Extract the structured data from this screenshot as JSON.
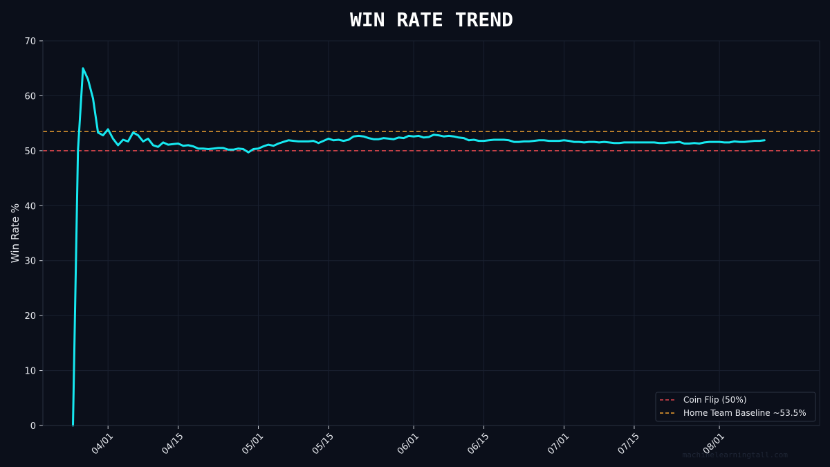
{
  "colors": {
    "background": "#0b0f1a",
    "plot_background": "#0b0f1a",
    "series": "#16e8f0",
    "coin_flip": "#e0474c",
    "home_baseline": "#f0a030",
    "grid": "#1a2030",
    "text": "#e7e9ee"
  },
  "watermark": "machinelearningtall.com",
  "chart_data": {
    "type": "line",
    "title": "WIN RATE TREND",
    "xlabel": "",
    "ylabel": "Win Rate %",
    "ylim": [
      0,
      70
    ],
    "xlim": [
      "2025-03-19",
      "2025-08-21"
    ],
    "yticks": [
      0,
      10,
      20,
      30,
      40,
      50,
      60,
      70
    ],
    "xticks": [
      "04/01",
      "04/15",
      "05/01",
      "05/15",
      "06/01",
      "06/15",
      "07/01",
      "07/15",
      "08/01"
    ],
    "xtick_dates": [
      "2025-04-01",
      "2025-04-15",
      "2025-05-01",
      "2025-05-15",
      "2025-06-01",
      "2025-06-15",
      "2025-07-01",
      "2025-07-15",
      "2025-08-01"
    ],
    "grid": true,
    "legend_position": "bottom-right",
    "reference_lines": [
      {
        "name": "Coin Flip (50%)",
        "value": 50,
        "color": "#e0474c",
        "style": "dashed"
      },
      {
        "name": "Home Team Baseline ~53.5%",
        "value": 53.5,
        "color": "#f0a030",
        "style": "dashed"
      }
    ],
    "series": [
      {
        "color": "#16e8f0",
        "start_date": "2025-03-25",
        "step_days": 1,
        "values": [
          0,
          50,
          65,
          63,
          59.5,
          53.3,
          52.8,
          53.9,
          52.2,
          51,
          52,
          51.7,
          53.3,
          52.8,
          51.7,
          52.2,
          51,
          50.7,
          51.5,
          51.1,
          51.2,
          51.3,
          50.9,
          51,
          50.8,
          50.4,
          50.4,
          50.3,
          50.4,
          50.5,
          50.5,
          50.2,
          50.2,
          50.4,
          50.3,
          49.7,
          50.3,
          50.4,
          50.8,
          51.1,
          50.9,
          51.3,
          51.6,
          51.9,
          51.8,
          51.7,
          51.7,
          51.7,
          51.8,
          51.4,
          51.8,
          52.2,
          51.9,
          52,
          51.8,
          52,
          52.6,
          52.7,
          52.6,
          52.3,
          52.1,
          52.1,
          52.3,
          52.2,
          52.1,
          52.4,
          52.3,
          52.7,
          52.6,
          52.7,
          52.4,
          52.5,
          52.9,
          52.8,
          52.6,
          52.7,
          52.6,
          52.4,
          52.3,
          51.9,
          52,
          51.8,
          51.8,
          51.9,
          52,
          52,
          52,
          51.9,
          51.6,
          51.6,
          51.7,
          51.7,
          51.8,
          51.9,
          51.9,
          51.8,
          51.8,
          51.8,
          51.9,
          51.8,
          51.6,
          51.6,
          51.5,
          51.6,
          51.6,
          51.5,
          51.6,
          51.5,
          51.4,
          51.4,
          51.5,
          51.5,
          51.5,
          51.5,
          51.5,
          51.5,
          51.5,
          51.4,
          51.4,
          51.5,
          51.5,
          51.6,
          51.3,
          51.3,
          51.4,
          51.3,
          51.5,
          51.6,
          51.6,
          51.6,
          51.5,
          51.5,
          51.7,
          51.6,
          51.6,
          51.7,
          51.8,
          51.8,
          51.9
        ]
      }
    ]
  }
}
